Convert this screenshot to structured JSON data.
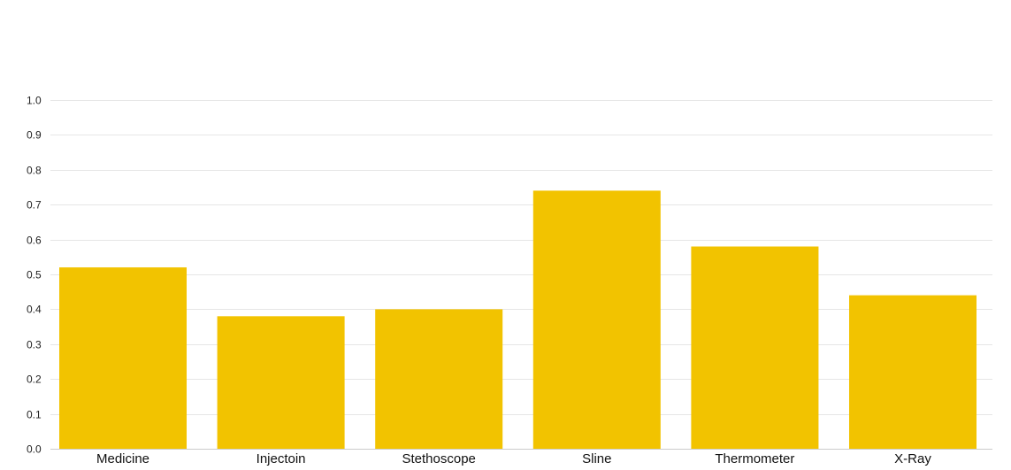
{
  "chart_data": {
    "type": "bar",
    "categories": [
      "Medicine",
      "Injectoin",
      "Stethoscope",
      "Sline",
      "Thermometer",
      "X-Ray"
    ],
    "values": [
      0.52,
      0.38,
      0.4,
      0.74,
      0.58,
      0.44
    ],
    "ylim": [
      0,
      1.0
    ],
    "yticks": [
      "0.0",
      "0.1",
      "0.2",
      "0.3",
      "0.4",
      "0.5",
      "0.6",
      "0.7",
      "0.8",
      "0.9",
      "1.0"
    ],
    "grid": true,
    "legend": "none",
    "bar_color": "#F2C300"
  }
}
